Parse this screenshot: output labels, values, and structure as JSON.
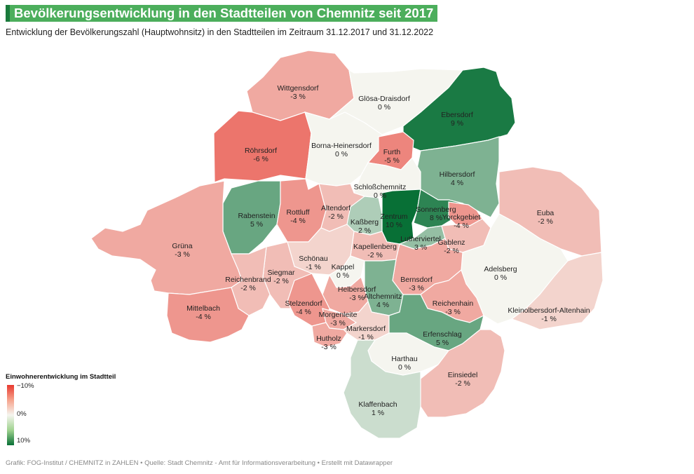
{
  "header": {
    "title": "Bevölkerungsentwicklung in den Stadtteilen von Chemnitz seit 2017",
    "subtitle": "Entwicklung der Bevölkerungszahl (Hauptwohnsitz) in den Stadtteilen im Zeitraum 31.12.2017 und 31.12.2022",
    "title_color": "#4cae5c"
  },
  "legend": {
    "title": "Einwohnerentwicklung im Stadtteil",
    "tick_top": "−10%",
    "tick_mid": "0%",
    "tick_bottom": "10%",
    "color_negative": "#e8392f",
    "color_neutral": "#f5f5ef",
    "color_positive": "#087036"
  },
  "districts": [
    {
      "name": "Wittgensdorf",
      "value": "-3 %",
      "change": -3
    },
    {
      "name": "Glösa-Draisdorf",
      "value": "0 %",
      "change": 0
    },
    {
      "name": "Ebersdorf",
      "value": "9 %",
      "change": 9
    },
    {
      "name": "Röhrsdorf",
      "value": "-6 %",
      "change": -6
    },
    {
      "name": "Borna-Heinersdorf",
      "value": "0 %",
      "change": 0
    },
    {
      "name": "Furth",
      "value": "-5 %",
      "change": -5
    },
    {
      "name": "Hilbersdorf",
      "value": "4 %",
      "change": 4
    },
    {
      "name": "Schloßchemnitz",
      "value": "0 %",
      "change": 0
    },
    {
      "name": "Rabenstein",
      "value": "5 %",
      "change": 5
    },
    {
      "name": "Rottluff",
      "value": "-4 %",
      "change": -4
    },
    {
      "name": "Altendorf",
      "value": "-2 %",
      "change": -2
    },
    {
      "name": "Kaßberg",
      "value": "2 %",
      "change": 2
    },
    {
      "name": "Zentrum",
      "value": "10 %",
      "change": 10
    },
    {
      "name": "Sonnenberg",
      "value": "8 %",
      "change": 8
    },
    {
      "name": "Yorckgebiet",
      "value": "-4 %",
      "change": -4
    },
    {
      "name": "Euba",
      "value": "-2 %",
      "change": -2
    },
    {
      "name": "Grüna",
      "value": "-3 %",
      "change": -3
    },
    {
      "name": "Lutherviertel",
      "value": "3 %",
      "change": 3
    },
    {
      "name": "Gablenz",
      "value": "-2 %",
      "change": -2
    },
    {
      "name": "Kapellenberg",
      "value": "-2 %",
      "change": -2
    },
    {
      "name": "Schönau",
      "value": "-1 %",
      "change": -1
    },
    {
      "name": "Kappel",
      "value": "0 %",
      "change": 0
    },
    {
      "name": "Adelsberg",
      "value": "0 %",
      "change": 0
    },
    {
      "name": "Siegmar",
      "value": "-2 %",
      "change": -2
    },
    {
      "name": "Reichenbrand",
      "value": "-2 %",
      "change": -2
    },
    {
      "name": "Bernsdorf",
      "value": "-3 %",
      "change": -3
    },
    {
      "name": "Helbersdorf",
      "value": "-3 %",
      "change": -3
    },
    {
      "name": "Altchemnitz",
      "value": "4 %",
      "change": 4
    },
    {
      "name": "Reichenhain",
      "value": "-3 %",
      "change": -3
    },
    {
      "name": "Kleinolbersdorf-Altenhain",
      "value": "-1 %",
      "change": -1
    },
    {
      "name": "Mittelbach",
      "value": "-4 %",
      "change": -4
    },
    {
      "name": "Stelzendorf",
      "value": "-4 %",
      "change": -4
    },
    {
      "name": "Morgenleite",
      "value": "-3 %",
      "change": -3
    },
    {
      "name": "Markersdorf",
      "value": "-1 %",
      "change": -1
    },
    {
      "name": "Erfenschlag",
      "value": "5 %",
      "change": 5
    },
    {
      "name": "Hutholz",
      "value": "-3 %",
      "change": -3
    },
    {
      "name": "Harthau",
      "value": "0 %",
      "change": 0
    },
    {
      "name": "Einsiedel",
      "value": "-2 %",
      "change": -2
    },
    {
      "name": "Klaffenbach",
      "value": "1 %",
      "change": 1
    }
  ],
  "footer": {
    "credit": "Grafik: FOG-Institut / CHEMNITZ in ZAHLEN • Quelle: Stadt Chemnitz - Amt für Informationsverarbeitung • Erstellt mit Datawrapper"
  }
}
